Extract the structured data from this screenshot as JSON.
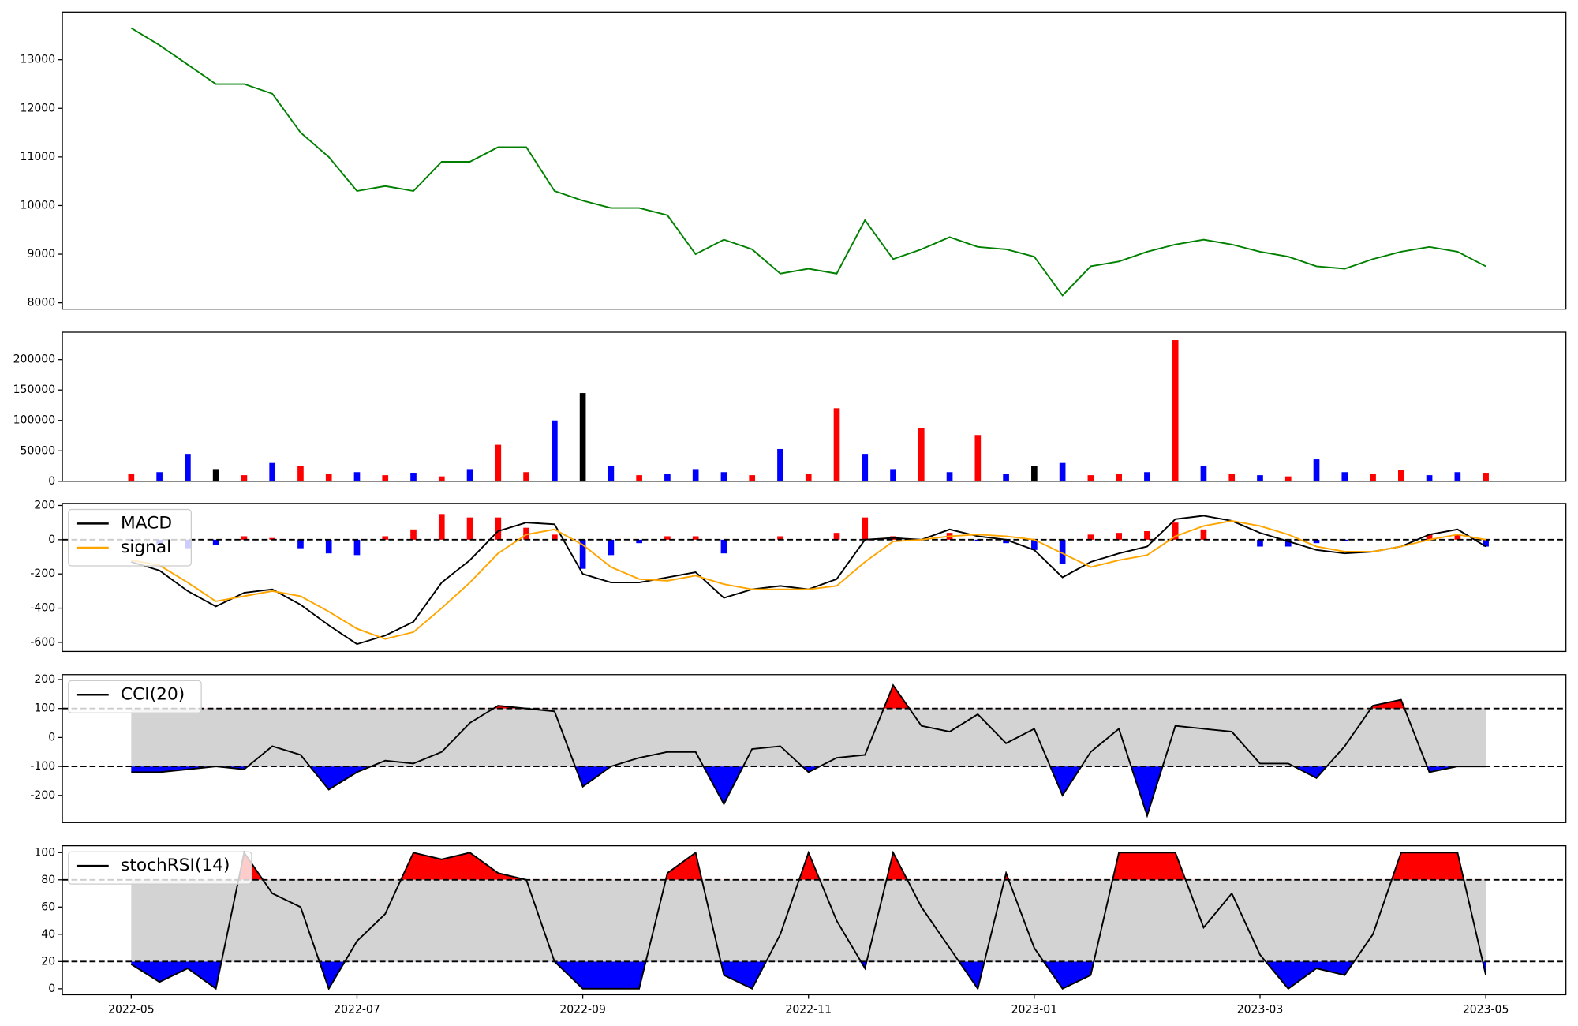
{
  "chart_data": [
    {
      "type": "line",
      "x": [
        0,
        0.25,
        0.5,
        0.75,
        1,
        1.25,
        1.5,
        1.75,
        2,
        2.25,
        2.5,
        2.75,
        3,
        3.25,
        3.5,
        3.75,
        4,
        4.25,
        4.5,
        4.75,
        5,
        5.25,
        5.5,
        5.75,
        6,
        6.25,
        6.5,
        6.75,
        7,
        7.25,
        7.5,
        7.75,
        8,
        8.25,
        8.5,
        8.75,
        9,
        9.25,
        9.5,
        9.75,
        10,
        10.25,
        10.5,
        10.75,
        11,
        11.25,
        11.5,
        11.75,
        12
      ],
      "series": [
        {
          "color": "green",
          "values": [
            13650,
            13300,
            12900,
            12500,
            12500,
            12300,
            11500,
            11000,
            10300,
            10400,
            10300,
            10900,
            10900,
            11200,
            11200,
            10300,
            10100,
            9950,
            9950,
            9800,
            9000,
            9300,
            9100,
            8600,
            8700,
            8600,
            9700,
            8900,
            9100,
            9350,
            9150,
            9100,
            8950,
            8150,
            8750,
            8850,
            9050,
            9200,
            9300,
            9200,
            9050,
            8950,
            8750,
            8700,
            8900,
            9050,
            9150,
            9050,
            8750
          ]
        }
      ],
      "xlim": [
        -0.61,
        12.71
      ],
      "ylim": [
        7870,
        13980
      ],
      "yticks": [
        8000,
        9000,
        10000,
        11000,
        12000,
        13000
      ]
    },
    {
      "type": "bar",
      "x": [
        0,
        0.25,
        0.5,
        0.75,
        1,
        1.25,
        1.5,
        1.75,
        2,
        2.25,
        2.5,
        2.75,
        3,
        3.25,
        3.5,
        3.75,
        4,
        4.25,
        4.5,
        4.75,
        5,
        5.25,
        5.5,
        5.75,
        6,
        6.25,
        6.5,
        6.75,
        7,
        7.25,
        7.5,
        7.75,
        8,
        8.25,
        8.5,
        8.75,
        9,
        9.25,
        9.5,
        9.75,
        10,
        10.25,
        10.5,
        10.75,
        11,
        11.25,
        11.5,
        11.75,
        12
      ],
      "values": [
        12000,
        15000,
        45000,
        20000,
        10000,
        30000,
        25000,
        12000,
        15000,
        10000,
        14000,
        8000,
        20000,
        60000,
        15000,
        100000,
        145000,
        25000,
        10000,
        12000,
        20000,
        15000,
        10000,
        53000,
        12000,
        120000,
        45000,
        20000,
        88000,
        15000,
        76000,
        12000,
        25000,
        30000,
        10000,
        12000,
        15000,
        232000,
        25000,
        12000,
        10000,
        8000,
        36000,
        15000,
        12000,
        18000,
        10000,
        15000,
        14000
      ],
      "colors": [
        "red",
        "blue",
        "blue",
        "black",
        "red",
        "blue",
        "red",
        "red",
        "blue",
        "red",
        "blue",
        "red",
        "blue",
        "red",
        "red",
        "blue",
        "black",
        "blue",
        "red",
        "blue",
        "blue",
        "blue",
        "red",
        "blue",
        "red",
        "red",
        "blue",
        "blue",
        "red",
        "blue",
        "red",
        "blue",
        "black",
        "blue",
        "red",
        "red",
        "blue",
        "red",
        "blue",
        "red",
        "blue",
        "red",
        "blue",
        "blue",
        "red",
        "red",
        "blue",
        "blue",
        "red"
      ],
      "xlim": [
        -0.61,
        12.71
      ],
      "ylim": [
        0,
        245000
      ],
      "yticks": [
        0,
        50000,
        100000,
        150000,
        200000
      ]
    },
    {
      "type": "macd",
      "x": [
        0,
        0.25,
        0.5,
        0.75,
        1,
        1.25,
        1.5,
        1.75,
        2,
        2.25,
        2.5,
        2.75,
        3,
        3.25,
        3.5,
        3.75,
        4,
        4.25,
        4.5,
        4.75,
        5,
        5.25,
        5.5,
        5.75,
        6,
        6.25,
        6.5,
        6.75,
        7,
        7.25,
        7.5,
        7.75,
        8,
        8.25,
        8.5,
        8.75,
        9,
        9.25,
        9.5,
        9.75,
        10,
        10.25,
        10.5,
        10.75,
        11,
        11.25,
        11.5,
        11.75,
        12
      ],
      "series": [
        {
          "name": "MACD",
          "color": "black",
          "values": [
            -130,
            -180,
            -300,
            -390,
            -310,
            -290,
            -380,
            -500,
            -610,
            -560,
            -480,
            -250,
            -120,
            50,
            100,
            90,
            -200,
            -250,
            -250,
            -220,
            -190,
            -340,
            -290,
            -270,
            -290,
            -230,
            0,
            10,
            0,
            60,
            20,
            0,
            -60,
            -220,
            -130,
            -80,
            -40,
            120,
            140,
            110,
            40,
            -10,
            -60,
            -80,
            -70,
            -40,
            30,
            60,
            -40
          ]
        },
        {
          "name": "signal",
          "color": "orange",
          "values": [
            -120,
            -150,
            -250,
            -360,
            -330,
            -300,
            -330,
            -420,
            -520,
            -580,
            -540,
            -400,
            -250,
            -80,
            30,
            60,
            -30,
            -160,
            -230,
            -240,
            -210,
            -260,
            -290,
            -290,
            -290,
            -270,
            -130,
            -10,
            0,
            20,
            30,
            20,
            0,
            -80,
            -160,
            -120,
            -90,
            20,
            80,
            110,
            80,
            30,
            -40,
            -70,
            -70,
            -40,
            0,
            30,
            0
          ]
        }
      ],
      "histogram": {
        "up_color": "red",
        "down_color": "blue",
        "values": [
          -10,
          -30,
          -50,
          -30,
          20,
          10,
          -50,
          -80,
          -90,
          20,
          60,
          150,
          130,
          130,
          70,
          30,
          -170,
          -90,
          -20,
          20,
          20,
          -80,
          0,
          20,
          0,
          40,
          130,
          20,
          0,
          40,
          -10,
          -20,
          -60,
          -140,
          30,
          40,
          50,
          100,
          60,
          0,
          -40,
          -40,
          -20,
          -10,
          0,
          0,
          30,
          30,
          -40
        ]
      },
      "levels": [
        0
      ],
      "xlim": [
        -0.61,
        12.71
      ],
      "ylim": [
        -653,
        212
      ],
      "yticks": [
        -600,
        -400,
        -200,
        0,
        200
      ],
      "legend": "upper left"
    },
    {
      "type": "oscillator",
      "x": [
        0,
        0.25,
        0.5,
        0.75,
        1,
        1.25,
        1.5,
        1.75,
        2,
        2.25,
        2.5,
        2.75,
        3,
        3.25,
        3.5,
        3.75,
        4,
        4.25,
        4.5,
        4.75,
        5,
        5.25,
        5.5,
        5.75,
        6,
        6.25,
        6.5,
        6.75,
        7,
        7.25,
        7.5,
        7.75,
        8,
        8.25,
        8.5,
        8.75,
        9,
        9.25,
        9.5,
        9.75,
        10,
        10.25,
        10.5,
        10.75,
        11,
        11.25,
        11.5,
        11.75,
        12
      ],
      "series": [
        {
          "name": "CCI(20)",
          "color": "black",
          "values": [
            -120,
            -120,
            -110,
            -100,
            -110,
            -30,
            -60,
            -180,
            -120,
            -80,
            -90,
            -50,
            50,
            110,
            100,
            90,
            -170,
            -100,
            -70,
            -50,
            -50,
            -230,
            -40,
            -30,
            -120,
            -70,
            -60,
            180,
            40,
            20,
            80,
            -20,
            30,
            -200,
            -50,
            30,
            -270,
            40,
            30,
            20,
            -90,
            -90,
            -140,
            -30,
            110,
            130,
            -120,
            -100,
            -100
          ]
        }
      ],
      "levels": [
        -100,
        100
      ],
      "band_color": "lightgrey",
      "above_color": "red",
      "below_color": "blue",
      "xlim": [
        -0.61,
        12.71
      ],
      "ylim": [
        -294,
        217
      ],
      "yticks": [
        -200,
        -100,
        0,
        100,
        200
      ],
      "legend": "upper left"
    },
    {
      "type": "oscillator",
      "x": [
        0,
        0.25,
        0.5,
        0.75,
        1,
        1.25,
        1.5,
        1.75,
        2,
        2.25,
        2.5,
        2.75,
        3,
        3.25,
        3.5,
        3.75,
        4,
        4.25,
        4.5,
        4.75,
        5,
        5.25,
        5.5,
        5.75,
        6,
        6.25,
        6.5,
        6.75,
        7,
        7.25,
        7.5,
        7.75,
        8,
        8.25,
        8.5,
        8.75,
        9,
        9.25,
        9.5,
        9.75,
        10,
        10.25,
        10.5,
        10.75,
        11,
        11.25,
        11.5,
        11.75,
        12
      ],
      "series": [
        {
          "name": "stochRSI(14)",
          "color": "black",
          "values": [
            18,
            5,
            15,
            0,
            100,
            70,
            60,
            0,
            35,
            55,
            100,
            95,
            100,
            85,
            80,
            20,
            0,
            0,
            0,
            85,
            100,
            10,
            0,
            40,
            100,
            50,
            15,
            100,
            60,
            30,
            0,
            85,
            30,
            0,
            10,
            100,
            100,
            100,
            45,
            70,
            25,
            0,
            15,
            10,
            40,
            100,
            100,
            100,
            10
          ]
        }
      ],
      "levels": [
        20,
        80
      ],
      "band_color": "lightgrey",
      "above_color": "red",
      "below_color": "blue",
      "xlim": [
        -0.61,
        12.71
      ],
      "ylim": [
        -4.4,
        105
      ],
      "yticks": [
        0,
        20,
        40,
        60,
        80,
        100
      ],
      "legend": "upper left",
      "xticks": [
        {
          "value": 0,
          "label": "2022-05"
        },
        {
          "value": 2,
          "label": "2022-07"
        },
        {
          "value": 4,
          "label": "2022-09"
        },
        {
          "value": 6,
          "label": "2022-11"
        },
        {
          "value": 8,
          "label": "2023-01"
        },
        {
          "value": 10,
          "label": "2023-03"
        },
        {
          "value": 12,
          "label": "2023-05"
        }
      ]
    }
  ]
}
